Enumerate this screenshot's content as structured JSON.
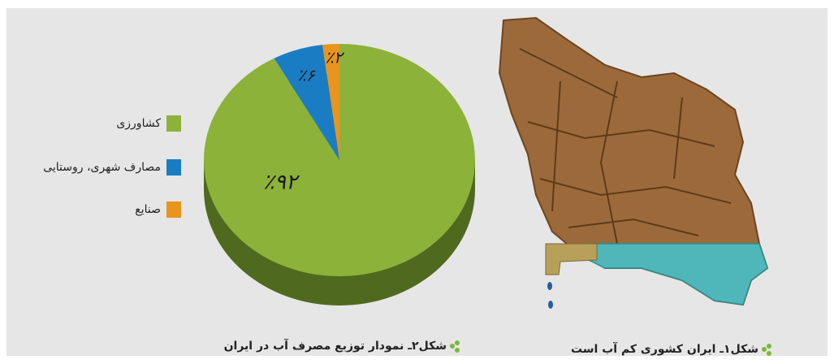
{
  "chart_data": {
    "type": "pie",
    "categories": [
      "کشاورزی",
      "مصارف شهری، روستایی",
      "صنایع"
    ],
    "values": [
      92,
      6,
      2
    ],
    "value_labels": [
      "٪۹۲",
      "٪۶",
      "٪۲"
    ],
    "colors": [
      "#8cb23a",
      "#1a7dc3",
      "#e8941e"
    ],
    "caption": "شکل۲ـ نمودار توزیع مصرف آب در ایران"
  },
  "figure": {
    "caption": "شکل۱ـ ایران کشوری کم آب است"
  }
}
